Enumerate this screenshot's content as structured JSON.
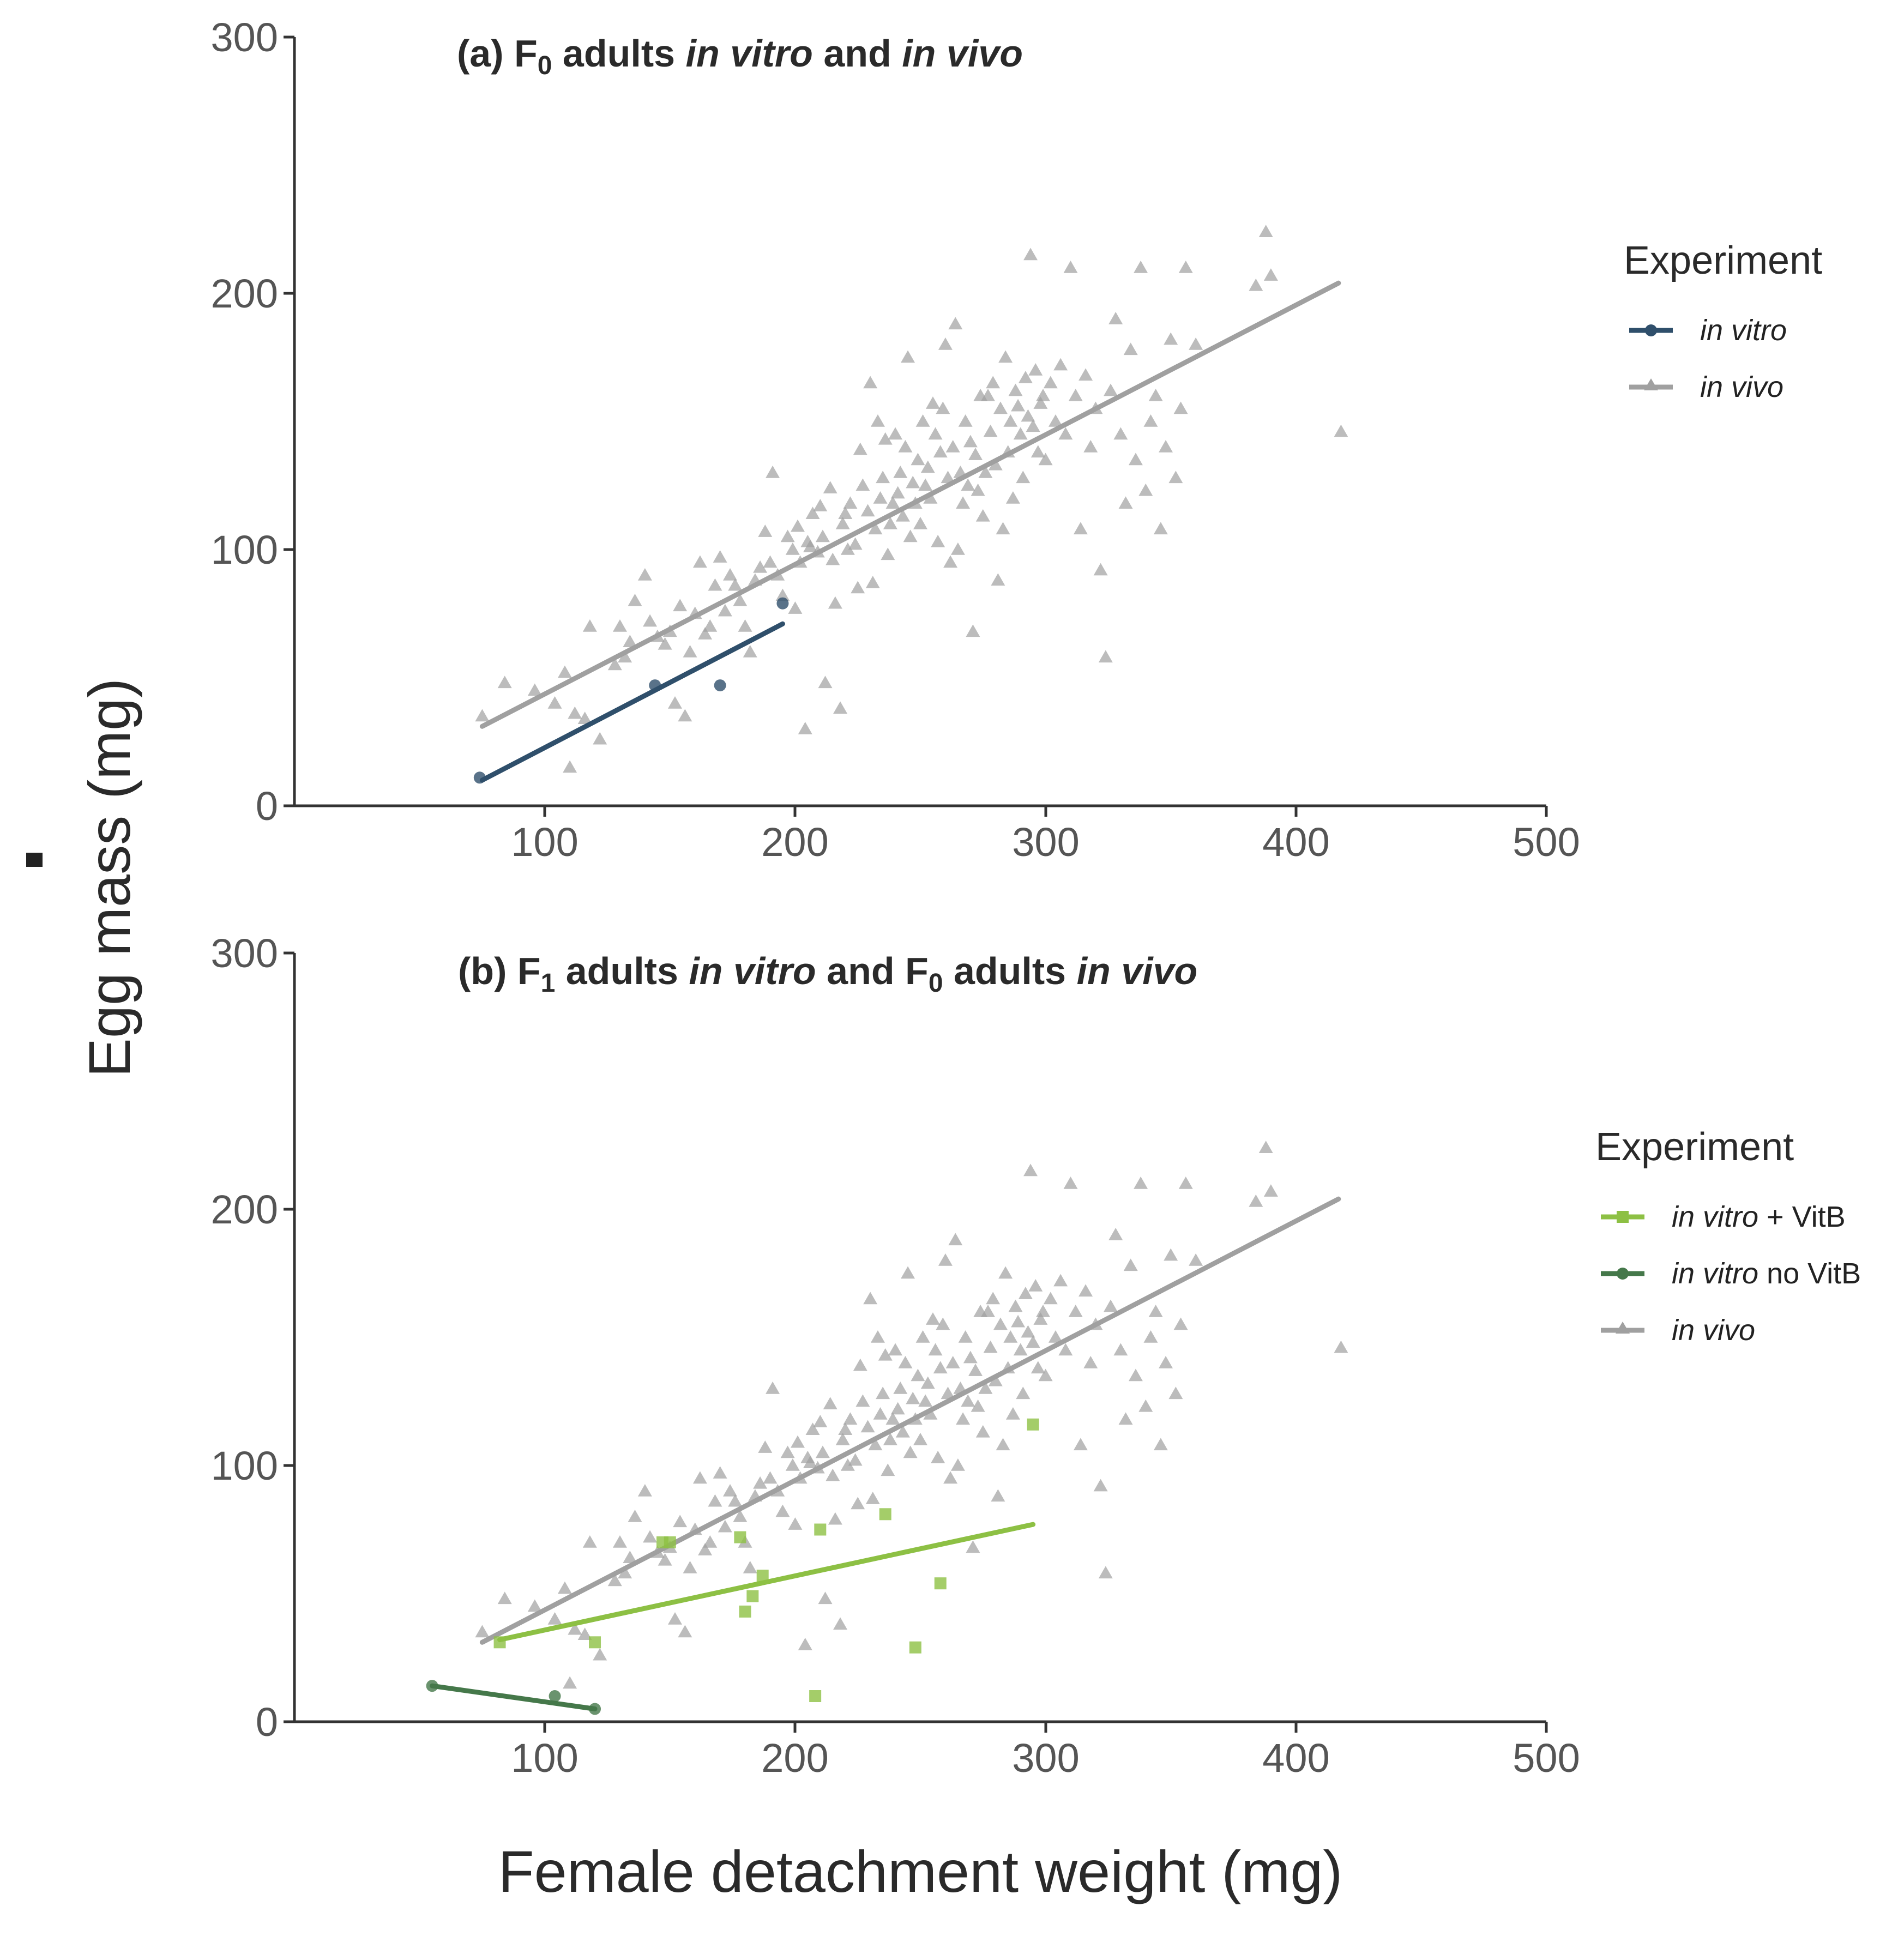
{
  "xlabel": "Female detachment weight (mg)",
  "ylabel": "Egg mass (mg)",
  "colors": {
    "in_vivo": "#a0a0a0",
    "in_vitro": "#2f4f6b",
    "in_vitro_vitb": "#8dc044",
    "in_vitro_novitb": "#45784a"
  },
  "chart_data": [
    {
      "type": "scatter",
      "panel": "a",
      "title_parts": [
        {
          "text": "(a) F",
          "italic": false
        },
        {
          "text": "0",
          "italic": false,
          "sub": true
        },
        {
          "text": " adults ",
          "italic": false
        },
        {
          "text": "in vitro",
          "italic": true
        },
        {
          "text": " and ",
          "italic": false
        },
        {
          "text": "in vivo",
          "italic": true
        }
      ],
      "xlim": [
        0,
        500
      ],
      "ylim": [
        0,
        300
      ],
      "xticks": [
        "100",
        "200",
        "300",
        "400",
        "500"
      ],
      "yticks": [
        "0",
        "100",
        "200",
        "300"
      ],
      "legend": {
        "title": "Experiment",
        "entries": [
          {
            "label": "in vitro",
            "suffix": "",
            "series": "in_vitro",
            "marker": "circle"
          },
          {
            "label": "in vivo",
            "suffix": "",
            "series": "in_vivo",
            "marker": "triangle"
          }
        ]
      },
      "fits": [
        {
          "series": "in_vivo",
          "x": [
            75,
            417
          ],
          "y": [
            31,
            204
          ]
        },
        {
          "series": "in_vitro",
          "x": [
            75,
            195
          ],
          "y": [
            10,
            71
          ]
        }
      ],
      "points": [
        {
          "series": "in_vitro",
          "marker": "circle",
          "data": [
            [
              74,
              11
            ],
            [
              144,
              47
            ],
            [
              170,
              47
            ],
            [
              195,
              79
            ]
          ]
        }
      ]
    },
    {
      "type": "scatter",
      "panel": "b",
      "title_parts": [
        {
          "text": "(b) F",
          "italic": false
        },
        {
          "text": "1",
          "italic": false,
          "sub": true
        },
        {
          "text": " adults ",
          "italic": false
        },
        {
          "text": "in vitro",
          "italic": true
        },
        {
          "text": " and F",
          "italic": false
        },
        {
          "text": "0",
          "italic": false,
          "sub": true
        },
        {
          "text": " adults ",
          "italic": false
        },
        {
          "text": "in vivo",
          "italic": true
        }
      ],
      "xlim": [
        0,
        500
      ],
      "ylim": [
        0,
        300
      ],
      "xticks": [
        "100",
        "200",
        "300",
        "400",
        "500"
      ],
      "yticks": [
        "0",
        "100",
        "200",
        "300"
      ],
      "legend": {
        "title": "Experiment",
        "entries": [
          {
            "label": "in vitro",
            "suffix": " + VitB",
            "series": "in_vitro_vitb",
            "marker": "square"
          },
          {
            "label": "in vitro",
            "suffix": " no VitB",
            "series": "in_vitro_novitb",
            "marker": "circle"
          },
          {
            "label": "in vivo",
            "suffix": "",
            "series": "in_vivo",
            "marker": "triangle"
          }
        ]
      },
      "fits": [
        {
          "series": "in_vivo",
          "x": [
            75,
            417
          ],
          "y": [
            31,
            204
          ]
        },
        {
          "series": "in_vitro_vitb",
          "x": [
            82,
            295
          ],
          "y": [
            32,
            77
          ]
        },
        {
          "series": "in_vitro_novitb",
          "x": [
            55,
            120
          ],
          "y": [
            14,
            5
          ]
        }
      ],
      "points": [
        {
          "series": "in_vitro_vitb",
          "marker": "square",
          "data": [
            [
              82,
              31
            ],
            [
              120,
              31
            ],
            [
              147,
              70
            ],
            [
              150,
              70
            ],
            [
              178,
              72
            ],
            [
              180,
              43
            ],
            [
              183,
              49
            ],
            [
              187,
              57
            ],
            [
              208,
              10
            ],
            [
              210,
              75
            ],
            [
              236,
              81
            ],
            [
              248,
              29
            ],
            [
              258,
              54
            ],
            [
              295,
              116
            ]
          ]
        },
        {
          "series": "in_vitro_novitb",
          "marker": "circle",
          "data": [
            [
              55,
              14
            ],
            [
              104,
              10
            ],
            [
              120,
              5
            ]
          ]
        }
      ]
    }
  ],
  "in_vivo_points": [
    [
      75,
      35
    ],
    [
      84,
      48
    ],
    [
      96,
      45
    ],
    [
      104,
      40
    ],
    [
      108,
      52
    ],
    [
      110,
      15
    ],
    [
      112,
      36
    ],
    [
      116,
      34
    ],
    [
      118,
      70
    ],
    [
      122,
      26
    ],
    [
      128,
      55
    ],
    [
      130,
      70
    ],
    [
      132,
      58
    ],
    [
      134,
      64
    ],
    [
      136,
      80
    ],
    [
      140,
      90
    ],
    [
      142,
      72
    ],
    [
      145,
      66
    ],
    [
      148,
      63
    ],
    [
      150,
      68
    ],
    [
      152,
      40
    ],
    [
      154,
      78
    ],
    [
      156,
      35
    ],
    [
      158,
      60
    ],
    [
      160,
      75
    ],
    [
      162,
      95
    ],
    [
      164,
      67
    ],
    [
      166,
      70
    ],
    [
      168,
      86
    ],
    [
      170,
      97
    ],
    [
      172,
      76
    ],
    [
      174,
      90
    ],
    [
      176,
      86
    ],
    [
      178,
      80
    ],
    [
      180,
      70
    ],
    [
      182,
      60
    ],
    [
      184,
      88
    ],
    [
      186,
      93
    ],
    [
      188,
      107
    ],
    [
      190,
      95
    ],
    [
      191,
      130
    ],
    [
      193,
      90
    ],
    [
      195,
      82
    ],
    [
      197,
      105
    ],
    [
      199,
      100
    ],
    [
      200,
      77
    ],
    [
      201,
      109
    ],
    [
      202,
      95
    ],
    [
      204,
      30
    ],
    [
      205,
      103
    ],
    [
      206,
      101
    ],
    [
      207,
      114
    ],
    [
      209,
      99
    ],
    [
      210,
      117
    ],
    [
      211,
      105
    ],
    [
      212,
      48
    ],
    [
      214,
      124
    ],
    [
      215,
      96
    ],
    [
      216,
      79
    ],
    [
      218,
      38
    ],
    [
      219,
      110
    ],
    [
      220,
      114
    ],
    [
      221,
      100
    ],
    [
      222,
      118
    ],
    [
      224,
      102
    ],
    [
      225,
      85
    ],
    [
      226,
      139
    ],
    [
      227,
      125
    ],
    [
      229,
      115
    ],
    [
      230,
      165
    ],
    [
      231,
      87
    ],
    [
      232,
      108
    ],
    [
      233,
      150
    ],
    [
      234,
      120
    ],
    [
      235,
      128
    ],
    [
      236,
      143
    ],
    [
      237,
      98
    ],
    [
      238,
      110
    ],
    [
      239,
      118
    ],
    [
      240,
      145
    ],
    [
      241,
      122
    ],
    [
      242,
      130
    ],
    [
      243,
      113
    ],
    [
      244,
      140
    ],
    [
      245,
      175
    ],
    [
      246,
      105
    ],
    [
      247,
      126
    ],
    [
      248,
      118
    ],
    [
      249,
      135
    ],
    [
      250,
      110
    ],
    [
      251,
      150
    ],
    [
      252,
      125
    ],
    [
      253,
      132
    ],
    [
      254,
      120
    ],
    [
      255,
      157
    ],
    [
      256,
      145
    ],
    [
      257,
      103
    ],
    [
      258,
      138
    ],
    [
      259,
      155
    ],
    [
      260,
      180
    ],
    [
      261,
      128
    ],
    [
      262,
      95
    ],
    [
      263,
      140
    ],
    [
      264,
      188
    ],
    [
      265,
      100
    ],
    [
      266,
      130
    ],
    [
      267,
      118
    ],
    [
      268,
      150
    ],
    [
      269,
      125
    ],
    [
      270,
      142
    ],
    [
      271,
      68
    ],
    [
      272,
      137
    ],
    [
      273,
      123
    ],
    [
      274,
      160
    ],
    [
      275,
      113
    ],
    [
      276,
      130
    ],
    [
      277,
      160
    ],
    [
      278,
      146
    ],
    [
      279,
      165
    ],
    [
      280,
      133
    ],
    [
      281,
      88
    ],
    [
      282,
      155
    ],
    [
      283,
      108
    ],
    [
      284,
      175
    ],
    [
      285,
      138
    ],
    [
      286,
      150
    ],
    [
      287,
      120
    ],
    [
      288,
      162
    ],
    [
      289,
      156
    ],
    [
      290,
      145
    ],
    [
      291,
      128
    ],
    [
      292,
      167
    ],
    [
      293,
      152
    ],
    [
      294,
      215
    ],
    [
      295,
      148
    ],
    [
      296,
      170
    ],
    [
      297,
      138
    ],
    [
      298,
      157
    ],
    [
      299,
      160
    ],
    [
      300,
      135
    ],
    [
      302,
      165
    ],
    [
      304,
      150
    ],
    [
      306,
      172
    ],
    [
      308,
      145
    ],
    [
      310,
      210
    ],
    [
      312,
      160
    ],
    [
      314,
      108
    ],
    [
      316,
      168
    ],
    [
      318,
      140
    ],
    [
      320,
      155
    ],
    [
      322,
      92
    ],
    [
      324,
      58
    ],
    [
      326,
      162
    ],
    [
      328,
      190
    ],
    [
      330,
      145
    ],
    [
      332,
      118
    ],
    [
      334,
      178
    ],
    [
      336,
      135
    ],
    [
      338,
      210
    ],
    [
      340,
      123
    ],
    [
      342,
      150
    ],
    [
      344,
      160
    ],
    [
      346,
      108
    ],
    [
      348,
      140
    ],
    [
      350,
      182
    ],
    [
      352,
      128
    ],
    [
      354,
      155
    ],
    [
      356,
      210
    ],
    [
      360,
      180
    ],
    [
      384,
      203
    ],
    [
      388,
      224
    ],
    [
      390,
      207
    ],
    [
      418,
      146
    ]
  ]
}
